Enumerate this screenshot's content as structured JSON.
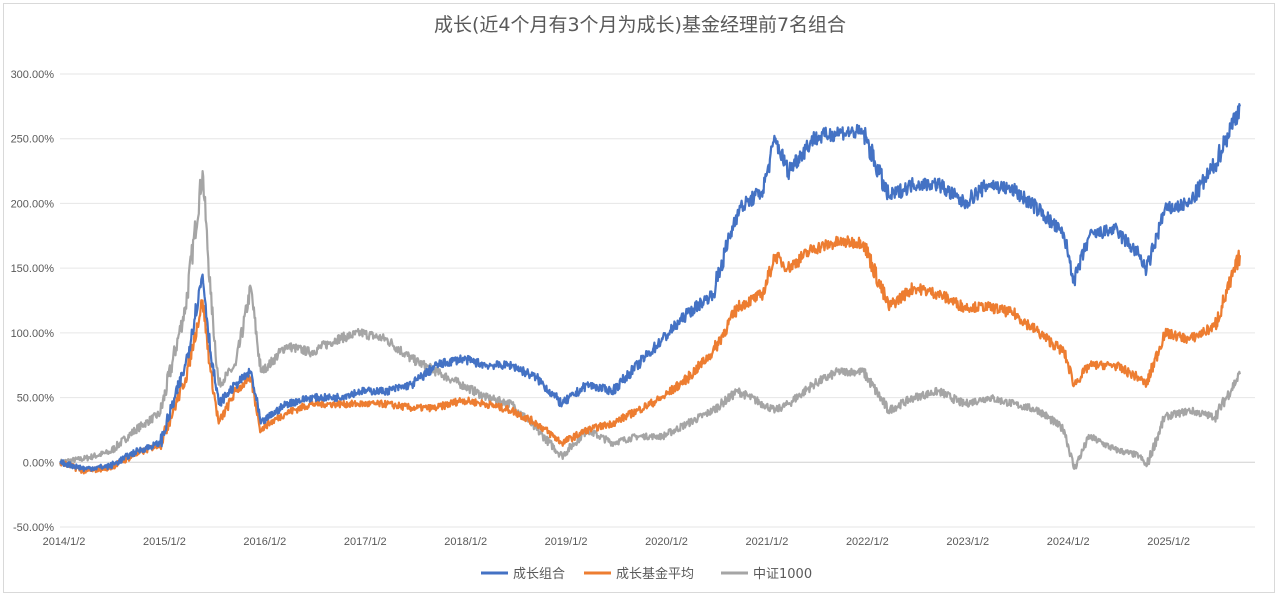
{
  "chart_data": {
    "type": "line",
    "title": "成长(近4个月有3个月为成长)基金经理前7名组合",
    "xlabel": "",
    "ylabel": "",
    "ylim": [
      -50,
      300
    ],
    "y_ticks": [
      "-50.00%",
      "0.00%",
      "50.00%",
      "100.00%",
      "150.00%",
      "200.00%",
      "250.00%",
      "300.00%"
    ],
    "x_ticks": [
      "2014/1/2",
      "2015/1/2",
      "2016/1/2",
      "2017/1/2",
      "2018/1/2",
      "2019/1/2",
      "2020/1/2",
      "2021/1/2",
      "2022/1/2",
      "2023/1/2",
      "2024/1/2",
      "2025/1/2"
    ],
    "grid": "horizontal",
    "legend_position": "bottom",
    "colors": {
      "series1": "#4472c4",
      "series2": "#ed7d31",
      "series3": "#a5a5a5"
    },
    "x": [
      2014.0,
      2014.25,
      2014.5,
      2014.75,
      2015.0,
      2015.25,
      2015.42,
      2015.5,
      2015.58,
      2015.75,
      2015.9,
      2016.0,
      2016.08,
      2016.25,
      2016.5,
      2016.75,
      2017.0,
      2017.25,
      2017.5,
      2017.75,
      2018.0,
      2018.25,
      2018.5,
      2018.75,
      2019.0,
      2019.25,
      2019.5,
      2019.75,
      2020.0,
      2020.25,
      2020.5,
      2020.75,
      2021.0,
      2021.12,
      2021.25,
      2021.5,
      2021.75,
      2022.0,
      2022.25,
      2022.5,
      2022.75,
      2023.0,
      2023.25,
      2023.5,
      2023.75,
      2024.0,
      2024.1,
      2024.25,
      2024.5,
      2024.75,
      2024.82,
      2025.0,
      2025.25,
      2025.5,
      2025.75
    ],
    "series": [
      {
        "name": "成长组合",
        "values": [
          0,
          -5,
          -3,
          8,
          15,
          75,
          145,
          85,
          45,
          60,
          70,
          30,
          35,
          45,
          50,
          50,
          55,
          55,
          60,
          75,
          80,
          75,
          75,
          65,
          45,
          60,
          55,
          75,
          95,
          115,
          130,
          195,
          210,
          250,
          225,
          250,
          255,
          255,
          205,
          215,
          215,
          200,
          215,
          210,
          195,
          175,
          140,
          175,
          180,
          160,
          148,
          195,
          200,
          230,
          275
        ]
      },
      {
        "name": "成长基金平均",
        "values": [
          0,
          -7,
          -4,
          6,
          14,
          65,
          125,
          70,
          30,
          55,
          65,
          25,
          30,
          38,
          45,
          45,
          45,
          45,
          42,
          42,
          48,
          45,
          40,
          30,
          15,
          25,
          30,
          40,
          50,
          65,
          85,
          120,
          130,
          160,
          150,
          165,
          170,
          170,
          120,
          135,
          130,
          120,
          120,
          115,
          100,
          85,
          60,
          75,
          75,
          65,
          60,
          100,
          95,
          105,
          160
        ]
      },
      {
        "name": "中证1000",
        "values": [
          0,
          3,
          8,
          25,
          38,
          120,
          225,
          130,
          60,
          75,
          135,
          70,
          75,
          90,
          85,
          95,
          100,
          95,
          80,
          70,
          60,
          50,
          45,
          25,
          5,
          25,
          15,
          20,
          20,
          30,
          40,
          55,
          45,
          40,
          45,
          60,
          70,
          70,
          40,
          50,
          55,
          45,
          50,
          45,
          40,
          25,
          -5,
          20,
          10,
          5,
          -3,
          35,
          40,
          35,
          68
        ]
      }
    ]
  }
}
